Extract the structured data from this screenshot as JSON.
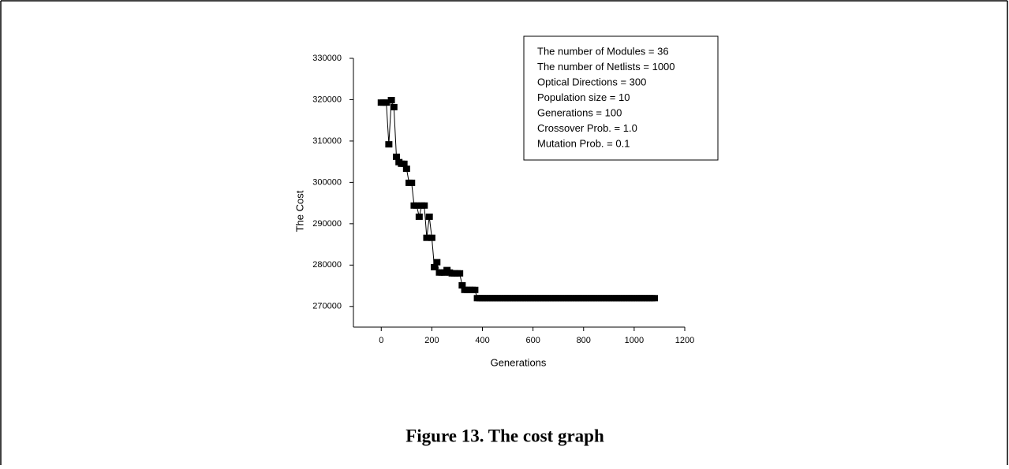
{
  "chart_data": {
    "type": "line",
    "caption": "Figure 13. The cost graph",
    "xlabel": "Generations",
    "ylabel": "The Cost",
    "annotation_lines": [
      "The number of Modules = 36",
      "The number of Netlists = 1000",
      "Optical Directions = 300",
      "Population size = 10",
      "Generations = 100",
      "Crossover Prob. = 1.0",
      "Mutation Prob. = 0.1"
    ],
    "xlim": [
      -110,
      1200
    ],
    "xticks": [
      0,
      200,
      400,
      600,
      800,
      1000,
      1200
    ],
    "ylim": [
      265000,
      330000
    ],
    "yticks": [
      270000,
      280000,
      290000,
      300000,
      310000,
      320000,
      330000
    ],
    "x": [
      0,
      10,
      20,
      30,
      40,
      50,
      60,
      70,
      80,
      90,
      100,
      110,
      120,
      130,
      140,
      150,
      160,
      170,
      180,
      190,
      200,
      210,
      220,
      230,
      240,
      250,
      260,
      270,
      280,
      290,
      300,
      310,
      320,
      330,
      340,
      350,
      360,
      370,
      380,
      390,
      400,
      410,
      420,
      430,
      440,
      450,
      460,
      470,
      480,
      490,
      500,
      510,
      520,
      530,
      540,
      550,
      560,
      570,
      580,
      590,
      600,
      610,
      620,
      630,
      640,
      650,
      660,
      670,
      680,
      690,
      700,
      710,
      720,
      730,
      740,
      750,
      760,
      770,
      780,
      790,
      800,
      810,
      820,
      830,
      840,
      850,
      860,
      870,
      880,
      890,
      900,
      910,
      920,
      930,
      940,
      950,
      960,
      970,
      980,
      990,
      1000,
      1010,
      1020,
      1030,
      1040,
      1050,
      1060,
      1070,
      1080
    ],
    "series": [
      {
        "color": "#000000",
        "values": [
          319300,
          319300,
          319300,
          309200,
          319900,
          318200,
          306200,
          304900,
          304500,
          304500,
          303300,
          299900,
          299900,
          294400,
          294400,
          291700,
          294400,
          294400,
          286600,
          291700,
          286600,
          279500,
          280700,
          278200,
          278200,
          278200,
          278800,
          278200,
          278000,
          278000,
          278000,
          278000,
          275100,
          274000,
          274000,
          274000,
          274000,
          274000,
          272000,
          272000,
          272000,
          272000,
          272000,
          272000,
          272000,
          272000,
          272000,
          272000,
          272000,
          272000,
          272000,
          272000,
          272000,
          272000,
          272000,
          272000,
          272000,
          272000,
          272000,
          272000,
          272000,
          272000,
          272000,
          272000,
          272000,
          272000,
          272000,
          272000,
          272000,
          272000,
          272000,
          272000,
          272000,
          272000,
          272000,
          272000,
          272000,
          272000,
          272000,
          272000,
          272000,
          272000,
          272000,
          272000,
          272000,
          272000,
          272000,
          272000,
          272000,
          272000,
          272000,
          272000,
          272000,
          272000,
          272000,
          272000,
          272000,
          272000,
          272000,
          272000,
          272000,
          272000,
          272000,
          272000,
          272000,
          272000,
          272000,
          272000,
          272000
        ]
      }
    ]
  }
}
